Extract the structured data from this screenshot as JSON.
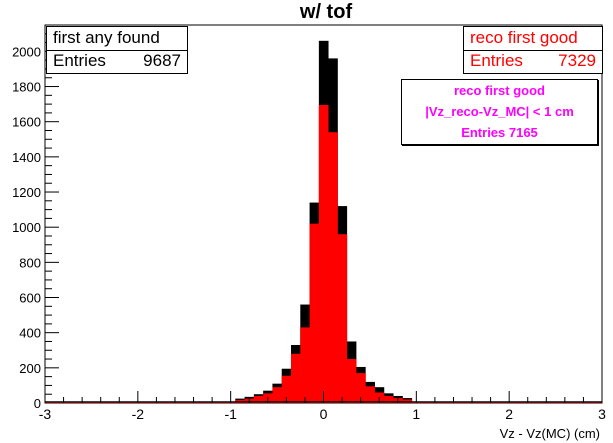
{
  "chart_data": {
    "type": "bar",
    "title": "w/ tof",
    "xlabel": "Vz - Vz(MC) (cm)",
    "ylabel": "",
    "xlim": [
      -3,
      3
    ],
    "ylim": [
      0,
      2150
    ],
    "x_ticks": [
      "-3",
      "-2",
      "-1",
      "0",
      "1",
      "2",
      "3"
    ],
    "y_ticks": [
      "0",
      "200",
      "400",
      "600",
      "800",
      "1000",
      "1200",
      "1400",
      "1600",
      "1800",
      "2000"
    ],
    "bin_width": 0.1,
    "x": [
      -0.9,
      -0.8,
      -0.7,
      -0.6,
      -0.5,
      -0.4,
      -0.3,
      -0.2,
      -0.1,
      0.0,
      0.1,
      0.2,
      0.3,
      0.4,
      0.5,
      0.6,
      0.7,
      0.8,
      0.9
    ],
    "grid": false,
    "series": [
      {
        "name": "first any found",
        "color": "#000000",
        "values": [
          25,
          35,
          50,
          70,
          110,
          195,
          330,
          560,
          1140,
          2060,
          1960,
          1120,
          350,
          205,
          120,
          90,
          55,
          40,
          28
        ]
      },
      {
        "name": "reco first good",
        "color": "#ff0000",
        "values": [
          18,
          25,
          40,
          55,
          90,
          155,
          280,
          430,
          1020,
          1695,
          1540,
          960,
          250,
          170,
          95,
          60,
          40,
          28,
          20
        ]
      }
    ]
  },
  "stats": {
    "black": {
      "title": "first any found",
      "entries_label": "Entries",
      "entries_value": "9687",
      "color": "#000000"
    },
    "red": {
      "title": "reco first good",
      "entries_label": "Entries",
      "entries_value": "7329",
      "color": "#ff0000"
    },
    "magenta": {
      "line1": "reco first good",
      "line2": "|Vz_reco-Vz_MC| < 1 cm",
      "line3": "Entries 7165",
      "color": "#ff00ff"
    }
  }
}
